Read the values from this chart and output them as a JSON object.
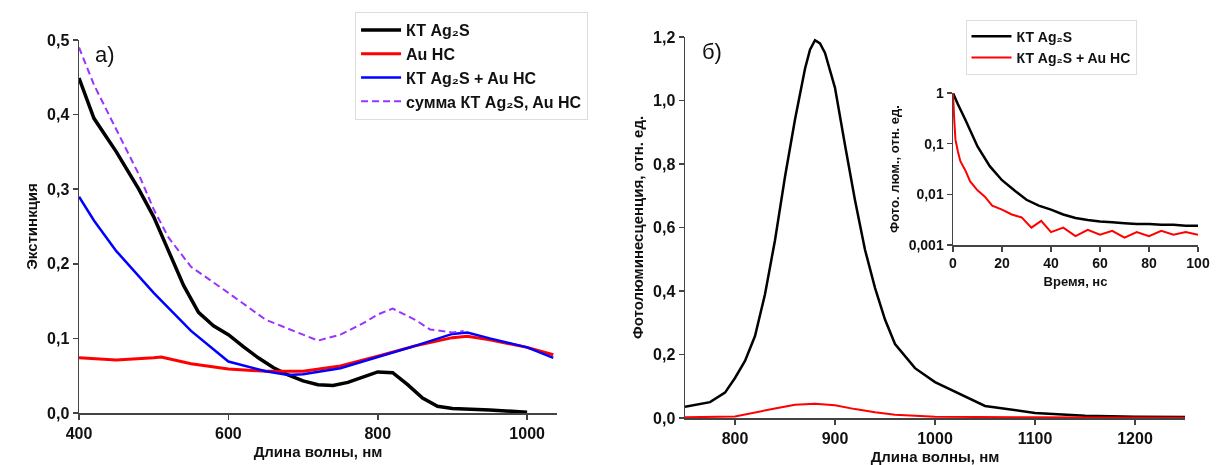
{
  "chart_data": [
    {
      "type": "line",
      "xlabel": "Длина волны, нм",
      "ylabel": "Экстинкция",
      "annotations": [
        "a)"
      ],
      "xlim": [
        400,
        1040
      ],
      "ylim": [
        0,
        0.5
      ],
      "xticks": [
        400,
        600,
        800,
        1000
      ],
      "yticks": [
        {
          "value": 0,
          "label": "0,0"
        },
        {
          "value": 0.1,
          "label": "0,1"
        },
        {
          "value": 0.2,
          "label": "0,2"
        },
        {
          "value": 0.3,
          "label": "0,3"
        },
        {
          "value": 0.4,
          "label": "0,4"
        },
        {
          "value": 0.5,
          "label": "0,5"
        }
      ],
      "grid": false,
      "legend": "top right",
      "series": [
        {
          "name": "КТ Ag₂S",
          "color": "#000000",
          "x": [
            400,
            420,
            450,
            480,
            500,
            520,
            540,
            560,
            580,
            600,
            620,
            640,
            660,
            680,
            700,
            720,
            740,
            760,
            780,
            800,
            820,
            840,
            860,
            880,
            900,
            950,
            1000
          ],
          "values": [
            0.449,
            0.395,
            0.35,
            0.3,
            0.263,
            0.217,
            0.171,
            0.135,
            0.117,
            0.105,
            0.089,
            0.074,
            0.061,
            0.051,
            0.043,
            0.038,
            0.037,
            0.041,
            0.048,
            0.055,
            0.054,
            0.038,
            0.02,
            0.009,
            0.006,
            0.004,
            0.001
          ]
        },
        {
          "name": "Au НС",
          "color": "#ff0000",
          "x": [
            400,
            450,
            500,
            510,
            550,
            600,
            650,
            700,
            750,
            800,
            850,
            900,
            920,
            950,
            1000,
            1035
          ],
          "values": [
            0.074,
            0.071,
            0.074,
            0.075,
            0.066,
            0.059,
            0.056,
            0.056,
            0.063,
            0.076,
            0.09,
            0.101,
            0.103,
            0.098,
            0.088,
            0.078
          ]
        },
        {
          "name": "КТ Ag₂S + Au НС",
          "color": "#0000ff",
          "x": [
            400,
            420,
            450,
            500,
            550,
            600,
            650,
            680,
            700,
            750,
            800,
            850,
            900,
            920,
            950,
            1000,
            1035
          ],
          "values": [
            0.29,
            0.258,
            0.217,
            0.161,
            0.11,
            0.069,
            0.056,
            0.051,
            0.052,
            0.06,
            0.075,
            0.09,
            0.106,
            0.108,
            0.1,
            0.088,
            0.074
          ]
        },
        {
          "name": "сумма КТ Ag₂S, Au НС",
          "color": "#9933ff",
          "line_style": "dashed",
          "x": [
            400,
            420,
            450,
            480,
            500,
            520,
            550,
            600,
            650,
            700,
            720,
            750,
            780,
            800,
            820,
            850,
            870,
            900,
            915
          ],
          "values": [
            0.49,
            0.44,
            0.38,
            0.32,
            0.273,
            0.235,
            0.196,
            0.161,
            0.125,
            0.105,
            0.097,
            0.105,
            0.12,
            0.132,
            0.14,
            0.125,
            0.112,
            0.108,
            0.11
          ]
        }
      ]
    },
    {
      "type": "line",
      "xlabel": "Длина волны, нм",
      "ylabel": "Фотолюминесценция, отн. ед.",
      "annotations": [
        "б)"
      ],
      "xlim": [
        750,
        1250
      ],
      "ylim": [
        0,
        1.2
      ],
      "xticks": [
        800,
        900,
        1000,
        1100,
        1200
      ],
      "yticks": [
        {
          "value": 0,
          "label": "0,0"
        },
        {
          "value": 0.2,
          "label": "0,2"
        },
        {
          "value": 0.4,
          "label": "0,4"
        },
        {
          "value": 0.6,
          "label": "0,6"
        },
        {
          "value": 0.8,
          "label": "0,8"
        },
        {
          "value": 1,
          "label": "1,0"
        },
        {
          "value": 1.2,
          "label": "1,2"
        }
      ],
      "grid": false,
      "series": [
        {
          "color": "#000000",
          "x": [
            750,
            775,
            790,
            800,
            810,
            820,
            830,
            840,
            850,
            860,
            870,
            875,
            880,
            885,
            890,
            900,
            910,
            920,
            930,
            940,
            950,
            960,
            980,
            1000,
            1050,
            1100,
            1150,
            1200,
            1250
          ],
          "values": [
            0.035,
            0.05,
            0.08,
            0.126,
            0.18,
            0.258,
            0.39,
            0.56,
            0.76,
            0.94,
            1.1,
            1.16,
            1.19,
            1.18,
            1.15,
            1.04,
            0.86,
            0.686,
            0.53,
            0.41,
            0.31,
            0.233,
            0.157,
            0.113,
            0.038,
            0.016,
            0.007,
            0.004,
            0.003
          ]
        },
        {
          "color": "#ff0000",
          "x": [
            750,
            800,
            840,
            860,
            880,
            900,
            920,
            940,
            960,
            1000,
            1100,
            1250
          ],
          "values": [
            0.002,
            0.005,
            0.03,
            0.042,
            0.045,
            0.04,
            0.028,
            0.018,
            0.01,
            0.004,
            0.002,
            0.001
          ]
        }
      ]
    },
    {
      "type": "line",
      "xlabel": "Время, нс",
      "ylabel": "Фото. люм., отн. ед.",
      "log": "y",
      "xlim": [
        0,
        100
      ],
      "ylim": [
        0.001,
        1
      ],
      "xticks": [
        0,
        20,
        40,
        60,
        80,
        100
      ],
      "yticks": [
        {
          "value": 0.001,
          "label": "0,001"
        },
        {
          "value": 0.01,
          "label": "0,01"
        },
        {
          "value": 0.1,
          "label": "0,1"
        },
        {
          "value": 1,
          "label": "1"
        }
      ],
      "grid": false,
      "legend": "top",
      "series": [
        {
          "name": "КТ Ag₂S",
          "color": "#000000",
          "x": [
            0,
            2,
            5,
            10,
            15,
            20,
            25,
            30,
            35,
            40,
            45,
            50,
            55,
            60,
            65,
            70,
            75,
            80,
            85,
            90,
            95,
            100
          ],
          "values": [
            1,
            0.6,
            0.3,
            0.088,
            0.036,
            0.019,
            0.012,
            0.0078,
            0.006,
            0.005,
            0.004,
            0.0034,
            0.0031,
            0.0029,
            0.0028,
            0.0027,
            0.0026,
            0.0026,
            0.0025,
            0.0025,
            0.0024,
            0.0024
          ]
        },
        {
          "name": "КТ Ag₂S + Au НС",
          "color": "#ff0000",
          "x": [
            0,
            0.5,
            1,
            2,
            3,
            5,
            7,
            10,
            13,
            16,
            20,
            24,
            28,
            32,
            36,
            40,
            45,
            50,
            55,
            60,
            65,
            70,
            75,
            80,
            85,
            90,
            95,
            100
          ],
          "values": [
            1,
            0.3,
            0.12,
            0.07,
            0.045,
            0.03,
            0.018,
            0.012,
            0.009,
            0.006,
            0.005,
            0.004,
            0.0035,
            0.0022,
            0.003,
            0.0018,
            0.0022,
            0.0015,
            0.002,
            0.0016,
            0.0019,
            0.0014,
            0.0018,
            0.0015,
            0.0019,
            0.0016,
            0.0018,
            0.0016
          ]
        }
      ]
    }
  ]
}
